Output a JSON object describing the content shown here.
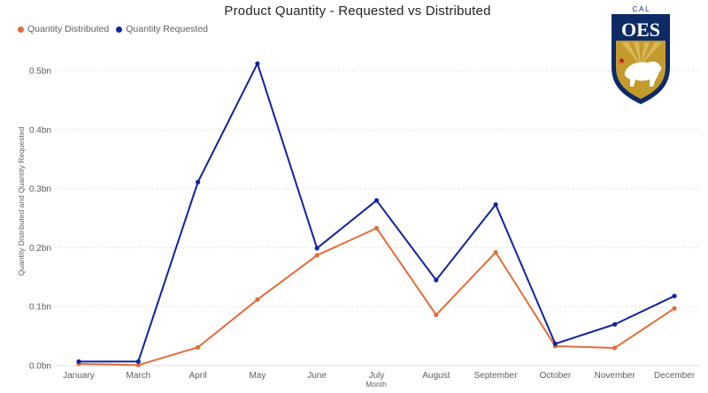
{
  "title": "Product Quantity - Requested vs Distributed",
  "logo": {
    "top_text": "C A L",
    "main_text": "OES"
  },
  "colors": {
    "distributed": "#E66C37",
    "requested": "#12239E",
    "grid": "#e1dfdd"
  },
  "chart_data": {
    "type": "line",
    "title": "Product Quantity - Requested vs Distributed",
    "xlabel": "Month",
    "ylabel": "Quantity Distributed and Quantity Requested",
    "categories": [
      "January",
      "March",
      "April",
      "May",
      "June",
      "July",
      "August",
      "September",
      "October",
      "November",
      "December"
    ],
    "yticks": [
      "0.0bn",
      "0.1bn",
      "0.2bn",
      "0.3bn",
      "0.4bn",
      "0.5bn"
    ],
    "ylim": [
      0,
      0.55
    ],
    "legend_position": "top-left",
    "grid": true,
    "series": [
      {
        "name": "Quantity Distributed",
        "color": "#E66C37",
        "values": [
          0.003,
          0.001,
          0.031,
          0.112,
          0.187,
          0.233,
          0.086,
          0.192,
          0.033,
          0.03,
          0.097
        ]
      },
      {
        "name": "Quantity Requested",
        "color": "#12239E",
        "values": [
          0.007,
          0.007,
          0.311,
          0.512,
          0.199,
          0.28,
          0.145,
          0.273,
          0.037,
          0.07,
          0.118
        ]
      }
    ]
  }
}
